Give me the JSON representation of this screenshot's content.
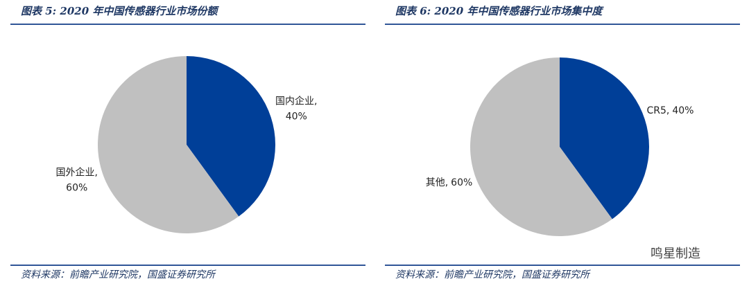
{
  "chart_data": [
    {
      "type": "pie",
      "title": "图表 5:  2020 年中国传感器行业市场份额",
      "categories": [
        "国内企业,",
        "国外企业,"
      ],
      "values": [
        40,
        60
      ],
      "value_labels": [
        "40%",
        "60%"
      ],
      "colors": [
        "#003f98",
        "#c0c0c0"
      ],
      "source": "资料来源：前瞻产业研究院，国盛证券研究所"
    },
    {
      "type": "pie",
      "title": "图表 6:  2020 年中国传感器行业市场集中度",
      "categories": [
        "CR5,",
        "其他,"
      ],
      "values": [
        40,
        60
      ],
      "value_labels": [
        "40%",
        "60%"
      ],
      "colors": [
        "#003f98",
        "#c0c0c0"
      ],
      "source": "资料来源：前瞻产业研究院，国盛证券研究所"
    }
  ],
  "watermark": "鸣星制造"
}
